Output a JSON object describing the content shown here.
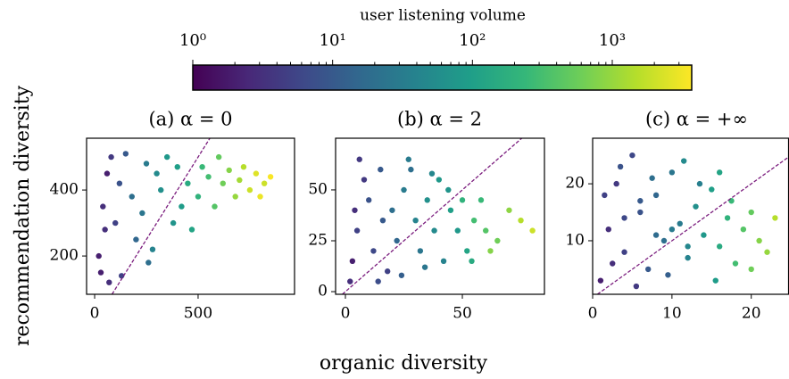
{
  "ylabel": "recommendation diversity",
  "xlabel": "organic diversity",
  "colorbar": {
    "label": "user listening volume",
    "colormap": "viridis",
    "log": true,
    "clim": [
      1,
      3700
    ],
    "ticks": [
      {
        "value": 1,
        "label": "10⁰"
      },
      {
        "value": 10,
        "label": "10¹"
      },
      {
        "value": 100,
        "label": "10²"
      },
      {
        "value": 1000,
        "label": "10³"
      }
    ],
    "minor_ticks": [
      2,
      3,
      4,
      5,
      6,
      7,
      8,
      9,
      20,
      30,
      40,
      50,
      60,
      70,
      80,
      90,
      200,
      300,
      400,
      500,
      600,
      700,
      800,
      900,
      2000,
      3000
    ]
  },
  "chart_data": [
    {
      "type": "scatter",
      "title": "(a) α = 0",
      "diagonal": true,
      "diagonal_color": "#7b1d7e",
      "xlim": [
        -39,
        966
      ],
      "ylim": [
        84,
        557
      ],
      "xticks": [
        0,
        500
      ],
      "yticks": [
        200,
        400
      ],
      "x": [
        20,
        40,
        60,
        80,
        30,
        100,
        120,
        150,
        50,
        200,
        180,
        250,
        230,
        300,
        280,
        320,
        350,
        380,
        400,
        420,
        450,
        470,
        500,
        520,
        550,
        580,
        600,
        620,
        650,
        680,
        700,
        720,
        750,
        780,
        800,
        820,
        850,
        70,
        130,
        260
      ],
      "y": [
        200,
        350,
        450,
        500,
        150,
        300,
        420,
        510,
        280,
        250,
        380,
        480,
        330,
        450,
        220,
        400,
        500,
        300,
        470,
        350,
        420,
        280,
        380,
        470,
        440,
        350,
        500,
        420,
        460,
        380,
        430,
        470,
        400,
        450,
        380,
        420,
        440,
        120,
        140,
        180
      ],
      "c": [
        2,
        3,
        2,
        4,
        2,
        5,
        8,
        10,
        3,
        15,
        20,
        30,
        25,
        50,
        40,
        60,
        80,
        70,
        100,
        90,
        150,
        120,
        200,
        250,
        300,
        400,
        500,
        600,
        800,
        1000,
        1200,
        1500,
        2000,
        2500,
        3000,
        2000,
        3500,
        3,
        5,
        20
      ]
    },
    {
      "type": "scatter",
      "title": "(b) α = 2",
      "diagonal": true,
      "diagonal_color": "#7b1d7e",
      "xlim": [
        -4.2,
        85.1
      ],
      "ylim": [
        -1.3,
        75.4
      ],
      "xticks": [
        0,
        50
      ],
      "yticks": [
        0,
        25,
        50
      ],
      "x": [
        2,
        5,
        8,
        10,
        3,
        15,
        12,
        20,
        18,
        25,
        22,
        30,
        28,
        35,
        32,
        40,
        38,
        45,
        42,
        50,
        48,
        55,
        52,
        60,
        58,
        65,
        70,
        75,
        6,
        14,
        24,
        34,
        44,
        54,
        4,
        16,
        27,
        37,
        62,
        80
      ],
      "y": [
        5,
        30,
        55,
        45,
        15,
        60,
        20,
        40,
        10,
        50,
        25,
        35,
        60,
        45,
        20,
        55,
        30,
        40,
        15,
        45,
        30,
        35,
        20,
        30,
        45,
        25,
        40,
        35,
        65,
        5,
        8,
        12,
        50,
        15,
        40,
        35,
        65,
        58,
        20,
        30
      ],
      "c": [
        3,
        5,
        4,
        8,
        2,
        10,
        6,
        20,
        5,
        30,
        15,
        40,
        20,
        60,
        25,
        80,
        50,
        100,
        40,
        200,
        80,
        300,
        120,
        400,
        250,
        600,
        900,
        1500,
        4,
        7,
        12,
        25,
        70,
        150,
        3,
        10,
        30,
        45,
        800,
        2000
      ]
    },
    {
      "type": "scatter",
      "title": "(c) α = +∞",
      "diagonal": true,
      "diagonal_color": "#7b1d7e",
      "xlim": [
        0,
        24.7
      ],
      "ylim": [
        0.6,
        28
      ],
      "xticks": [
        0,
        10,
        20
      ],
      "yticks": [
        10,
        20
      ],
      "x": [
        1,
        2,
        3,
        4,
        5,
        6,
        7,
        8,
        9,
        10,
        11,
        12,
        13,
        14,
        15,
        16,
        17,
        18,
        19,
        20,
        21,
        22,
        23,
        1.5,
        2.5,
        3.5,
        5.5,
        7.5,
        9.5,
        11.5,
        13.5,
        15.5,
        17.5,
        4,
        8,
        12,
        16,
        20,
        6,
        10
      ],
      "y": [
        3,
        12,
        20,
        8,
        25,
        15,
        5,
        18,
        10,
        22,
        13,
        7,
        16,
        11,
        19,
        9,
        14,
        6,
        12,
        15,
        10,
        8,
        14,
        18,
        6,
        23,
        2,
        21,
        4,
        24,
        20,
        3,
        17,
        14,
        11,
        9,
        22,
        5,
        17,
        12
      ],
      "c": [
        2,
        3,
        4,
        5,
        6,
        8,
        10,
        15,
        20,
        25,
        30,
        40,
        60,
        80,
        100,
        150,
        200,
        300,
        400,
        500,
        800,
        1000,
        1500,
        5,
        3,
        8,
        4,
        20,
        12,
        50,
        35,
        90,
        250,
        6,
        18,
        45,
        120,
        600,
        10,
        30
      ]
    }
  ]
}
